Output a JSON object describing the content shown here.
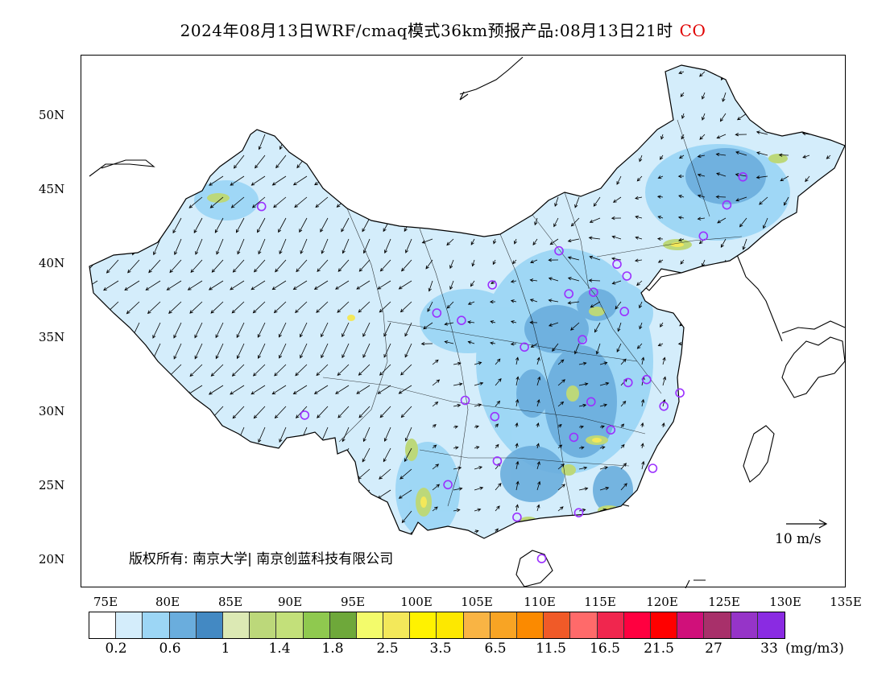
{
  "title": {
    "main": "2024年08月13日WRF/cmaq模式36km预报产品:08月13日21时",
    "species": "CO"
  },
  "axes": {
    "lat_ticks": [
      "50N",
      "45N",
      "40N",
      "35N",
      "30N",
      "25N",
      "20N"
    ],
    "lon_ticks": [
      "75E",
      "80E",
      "85E",
      "90E",
      "95E",
      "100E",
      "105E",
      "110E",
      "115E",
      "120E",
      "125E",
      "130E",
      "135E"
    ]
  },
  "copyright": "版权所有: 南京大学| 南京创蓝科技有限公司",
  "wind_reference": "10 m/s",
  "colorbar": {
    "colors": [
      "#ffffff",
      "#d4edfb",
      "#9cd6f5",
      "#6aaddd",
      "#4389c3",
      "#dce9b4",
      "#bcd87a",
      "#c3e07a",
      "#8fc94f",
      "#6ea83a",
      "#f3fb6b",
      "#f3e85a",
      "#fff200",
      "#fde800",
      "#f9b444",
      "#f8a424",
      "#fb8a00",
      "#f05a28",
      "#ff6a6a",
      "#f0264e",
      "#ff0040",
      "#ff0000",
      "#d0107a",
      "#a8306a",
      "#9634c8",
      "#8a2be2"
    ],
    "labels": [
      "0.2",
      "0.6",
      "1",
      "1.4",
      "1.8",
      "2.5",
      "3.5",
      "6.5",
      "11.5",
      "16.5",
      "21.5",
      "27",
      "33"
    ],
    "unit": "(mg/m3)"
  },
  "stations": [
    [
      87.6,
      43.8
    ],
    [
      91.1,
      29.7
    ],
    [
      101.8,
      36.6
    ],
    [
      103.8,
      36.1
    ],
    [
      106.3,
      38.5
    ],
    [
      111.7,
      40.8
    ],
    [
      113.6,
      34.8
    ],
    [
      112.5,
      37.9
    ],
    [
      114.5,
      38.0
    ],
    [
      116.4,
      39.9
    ],
    [
      117.2,
      39.1
    ],
    [
      117.0,
      36.7
    ],
    [
      108.9,
      34.3
    ],
    [
      104.1,
      30.7
    ],
    [
      106.5,
      29.6
    ],
    [
      114.3,
      30.6
    ],
    [
      112.9,
      28.2
    ],
    [
      115.9,
      28.7
    ],
    [
      117.3,
      31.9
    ],
    [
      118.8,
      32.1
    ],
    [
      120.2,
      30.3
    ],
    [
      121.5,
      31.2
    ],
    [
      119.3,
      26.1
    ],
    [
      113.3,
      23.1
    ],
    [
      108.3,
      22.8
    ],
    [
      110.3,
      20.0
    ],
    [
      102.7,
      25.0
    ],
    [
      106.7,
      26.6
    ],
    [
      123.4,
      41.8
    ],
    [
      125.3,
      43.9
    ],
    [
      126.6,
      45.8
    ]
  ],
  "colors": {
    "land_light": "#d4edfb",
    "land_mid": "#9cd6f5",
    "land_dark": "#6aaddd",
    "hotspot_green": "#bcd87a",
    "hotspot_yellow": "#f3e85a",
    "station": "#9b30ff"
  }
}
